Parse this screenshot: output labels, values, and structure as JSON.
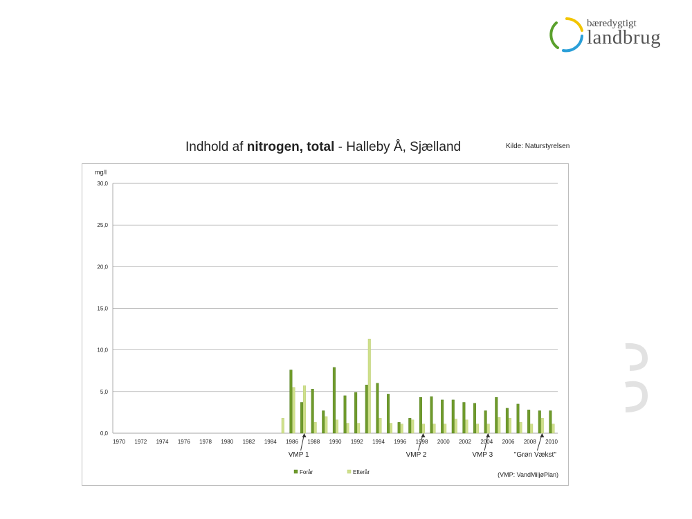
{
  "logo": {
    "small": "bæredygtigt",
    "big": "landbrug",
    "colors": [
      "#f2c500",
      "#2a9fd8",
      "#5aa02c"
    ]
  },
  "title": {
    "pre": "Indhold af ",
    "bold": "nitrogen, total",
    "post": " - Halleby Å, Sjælland"
  },
  "source": "Kilde: Naturstyrelsen",
  "note": "(VMP: VandMiljøPlan)",
  "chart_data": {
    "type": "bar",
    "ylabel": "mg/l",
    "ylim": [
      0,
      30
    ],
    "yticks": [
      "0,0",
      "5,0",
      "10,0",
      "15,0",
      "20,0",
      "25,0",
      "30,0"
    ],
    "x_labels": [
      "1970",
      "1972",
      "1974",
      "1976",
      "1978",
      "1980",
      "1982",
      "1984",
      "1986",
      "1988",
      "1990",
      "1992",
      "1994",
      "1996",
      "1998",
      "2000",
      "2002",
      "2004",
      "2006",
      "2008",
      "2010"
    ],
    "x": [
      1970,
      1971,
      1972,
      1973,
      1974,
      1975,
      1976,
      1977,
      1978,
      1979,
      1980,
      1981,
      1982,
      1983,
      1984,
      1985,
      1986,
      1987,
      1988,
      1989,
      1990,
      1991,
      1992,
      1993,
      1994,
      1995,
      1996,
      1997,
      1998,
      1999,
      2000,
      2001,
      2002,
      2003,
      2004,
      2005,
      2006,
      2007,
      2008,
      2009,
      2010
    ],
    "series": [
      {
        "name": "Forår",
        "color": "#6f9a2b",
        "values": [
          null,
          null,
          null,
          null,
          null,
          null,
          null,
          null,
          null,
          null,
          null,
          null,
          null,
          null,
          null,
          null,
          7.6,
          3.7,
          5.3,
          2.7,
          7.9,
          4.5,
          4.9,
          5.8,
          6.0,
          4.7,
          1.3,
          1.8,
          4.3,
          4.4,
          4.0,
          4.0,
          3.7,
          3.6,
          2.7,
          4.3,
          3.0,
          3.5,
          2.8,
          2.7,
          2.7
        ]
      },
      {
        "name": "Efterår",
        "color": "#cfe08c",
        "values": [
          null,
          null,
          null,
          null,
          null,
          null,
          null,
          null,
          null,
          null,
          null,
          null,
          null,
          null,
          null,
          1.8,
          5.5,
          5.7,
          1.3,
          2.0,
          1.6,
          1.2,
          1.2,
          11.3,
          1.8,
          1.2,
          1.1,
          1.6,
          1.1,
          1.1,
          1.1,
          1.7,
          1.6,
          1.1,
          1.1,
          1.9,
          1.8,
          1.3,
          1.1,
          1.8,
          1.1
        ]
      }
    ],
    "annotations": [
      {
        "label": "VMP 1",
        "x": 1987
      },
      {
        "label": "VMP 2",
        "x": 1998
      },
      {
        "label": "VMP 3",
        "x": 2004
      },
      {
        "label": "\"Grøn Vækst\"",
        "x": 2009
      }
    ],
    "grid": true,
    "legend": "bottom-center"
  }
}
